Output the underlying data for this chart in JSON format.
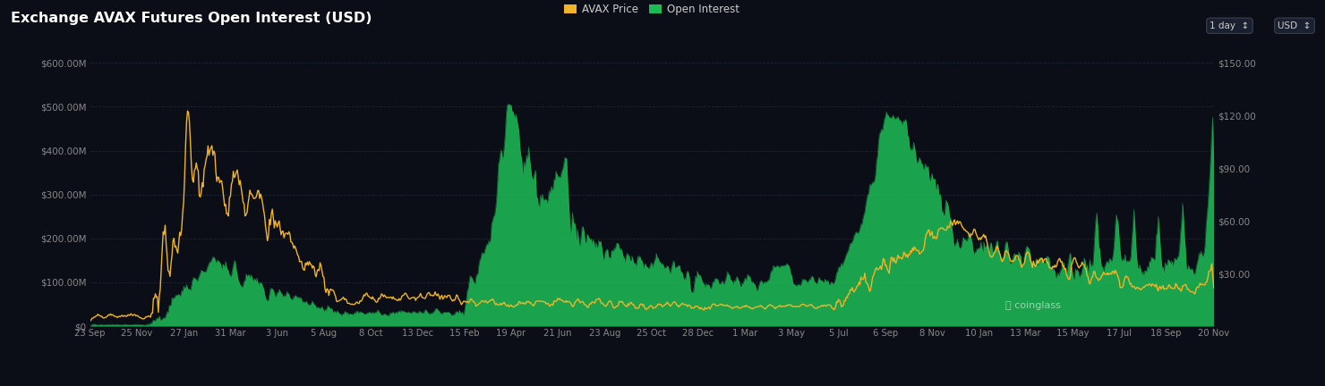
{
  "title": "Exchange AVAX Futures Open Interest (USD)",
  "background_color": "#0b0e17",
  "plot_bg_color": "#0b0e17",
  "grid_color": "#1e2535",
  "title_color": "#ffffff",
  "legend_avax_color": "#f0b429",
  "legend_oi_color": "#1db954",
  "left_ylim": [
    0,
    620000000
  ],
  "right_ylim": [
    0,
    155
  ],
  "left_yticks": [
    0,
    100000000,
    200000000,
    300000000,
    400000000,
    500000000,
    600000000
  ],
  "right_yticks": [
    30,
    60,
    90,
    120,
    150
  ],
  "xtick_labels": [
    "23 Sep",
    "25 Nov",
    "27 Jan",
    "31 Mar",
    "3 Jun",
    "5 Aug",
    "8 Oct",
    "13 Dec",
    "15 Feb",
    "19 Apr",
    "21 Jun",
    "23 Aug",
    "25 Oct",
    "28 Dec",
    "1 Mar",
    "3 May",
    "5 Jul",
    "6 Sep",
    "8 Nov",
    "10 Jan",
    "13 Mar",
    "15 May",
    "17 Jul",
    "18 Sep",
    "20 Nov"
  ],
  "xtick_count": 25
}
